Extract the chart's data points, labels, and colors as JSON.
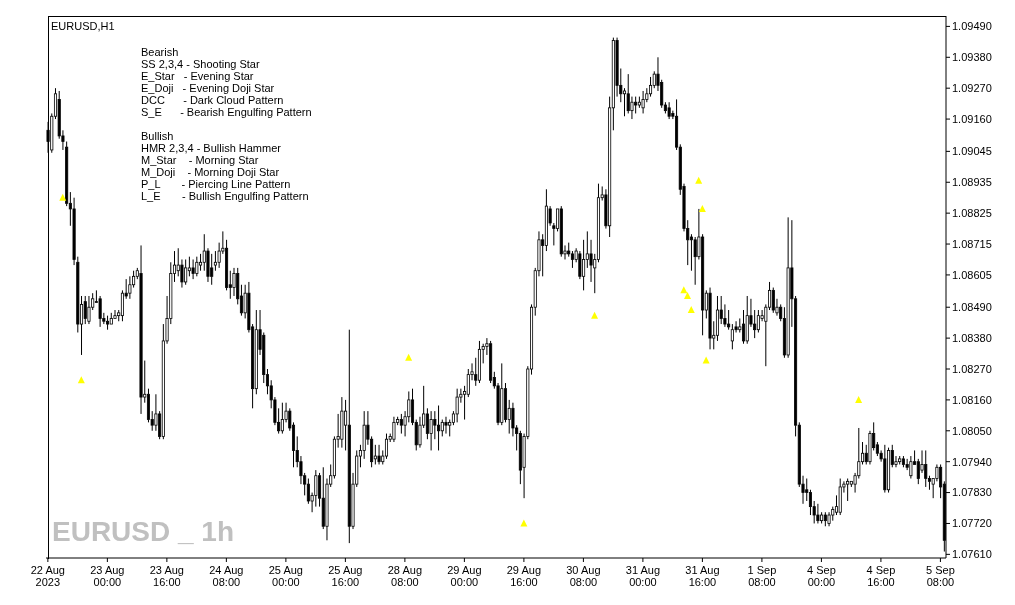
{
  "chart_data": {
    "type": "candlestick",
    "title": "EURUSD,H1",
    "annotations": [
      "Bearish",
      "SS 2,3,4 - Shooting Star",
      "E_Star   - Evening Star",
      "E_Doji   - Evening Doji Star",
      "DCC      - Dark Cloud Pattern",
      "S_E      - Bearish Engulfing Pattern",
      "Bullish",
      "HMR 2,3,4 - Bullish Hammer",
      "M_Star    - Morning Star",
      "M_Doji    - Morning Doji Star",
      "P_L       - Piercing Line Pattern",
      "L_E       - Bullish Engulfing Pattern",
      "EURUSD _ 1h"
    ],
    "categories": [
      "22 Aug 2023",
      null,
      null,
      null,
      null,
      null,
      null,
      null,
      null,
      null,
      null,
      null,
      null,
      null,
      null,
      null,
      "23 Aug 00:00",
      null,
      null,
      null,
      null,
      null,
      null,
      null,
      null,
      null,
      null,
      null,
      null,
      null,
      null,
      null,
      "23 Aug 16:00",
      null,
      null,
      null,
      null,
      null,
      null,
      null,
      null,
      null,
      null,
      null,
      null,
      null,
      null,
      null,
      "24 Aug 08:00",
      null,
      null,
      null,
      null,
      null,
      null,
      null,
      null,
      null,
      null,
      null,
      null,
      null,
      null,
      null,
      "25 Aug 00:00",
      null,
      null,
      null,
      null,
      null,
      null,
      null,
      null,
      null,
      null,
      null,
      null,
      null,
      null,
      null,
      "25 Aug 16:00",
      null,
      null,
      null,
      null,
      null,
      null,
      null,
      null,
      null,
      null,
      null,
      null,
      null,
      null,
      null,
      "28 Aug 08:00",
      null,
      null,
      null,
      null,
      null,
      null,
      null,
      null,
      null,
      null,
      null,
      null,
      null,
      null,
      null,
      "29 Aug 00:00",
      null,
      null,
      null,
      null,
      null,
      null,
      null,
      null,
      null,
      null,
      null,
      null,
      null,
      null,
      null,
      "29 Aug 16:00",
      null,
      null,
      null,
      null,
      null,
      null,
      null,
      null,
      null,
      null,
      null,
      null,
      null,
      null,
      null,
      "30 Aug 08:00",
      null,
      null,
      null,
      null,
      null,
      null,
      null,
      null,
      null,
      null,
      null,
      null,
      null,
      null,
      null,
      "31 Aug 00:00",
      null,
      null,
      null,
      null,
      null,
      null,
      null,
      null,
      null,
      null,
      null,
      null,
      null,
      null,
      null,
      "31 Aug 16:00",
      null,
      null,
      null,
      null,
      null,
      null,
      null,
      null,
      null,
      null,
      null,
      null,
      null,
      null,
      null,
      "1 Sep 08:00",
      null,
      null,
      null,
      null,
      null,
      null,
      null,
      null,
      null,
      null,
      null,
      null,
      null,
      null,
      null,
      "4 Sep 00:00",
      null,
      null,
      null,
      null,
      null,
      null,
      null,
      null,
      null,
      null,
      null,
      null,
      null,
      null,
      null,
      "4 Sep 16:00",
      null,
      null,
      null,
      null,
      null,
      null,
      null,
      null,
      null,
      null,
      null,
      null,
      null,
      null,
      null,
      "5 Sep 08:00",
      null
    ],
    "ohlc": [
      [
        1.0912,
        1.0915,
        1.0904,
        1.0908
      ],
      [
        1.0905,
        1.0918,
        1.0904,
        1.0917
      ],
      [
        1.0917,
        1.0927,
        1.0916,
        1.0925
      ],
      [
        1.0923,
        1.0926,
        1.0909,
        1.091
      ],
      [
        1.091,
        1.0912,
        1.0905,
        1.0908
      ],
      [
        1.0906,
        1.0908,
        1.0885,
        1.0886
      ],
      [
        1.0886,
        1.089,
        1.0878,
        1.0884
      ],
      [
        1.0884,
        1.0888,
        1.0864,
        1.0866
      ],
      [
        1.0865,
        1.0867,
        1.084,
        1.0843
      ],
      [
        1.0843,
        1.0853,
        1.0832,
        1.085
      ],
      [
        1.0851,
        1.0853,
        1.0843,
        1.0845
      ],
      [
        1.0844,
        1.0853,
        1.0843,
        1.0849
      ],
      [
        1.0849,
        1.0854,
        1.0848,
        1.0852
      ],
      [
        1.0851,
        1.0855,
        1.0851,
        1.0851
      ],
      [
        1.0852,
        1.0853,
        1.0842,
        1.0845
      ],
      [
        1.0845,
        1.0847,
        1.0843,
        1.0844
      ],
      [
        1.0844,
        1.0846,
        1.0841,
        1.0843
      ],
      [
        1.0843,
        1.0847,
        1.0843,
        1.0845
      ],
      [
        1.0845,
        1.0848,
        1.0845,
        1.0846
      ],
      [
        1.0846,
        1.0848,
        1.0844,
        1.0847
      ],
      [
        1.0846,
        1.0855,
        1.0844,
        1.0854
      ],
      [
        1.0854,
        1.0859,
        1.0852,
        1.0853
      ],
      [
        1.0854,
        1.086,
        1.0852,
        1.0857
      ],
      [
        1.0857,
        1.0862,
        1.0856,
        1.086
      ],
      [
        1.086,
        1.0863,
        1.0859,
        1.0862
      ],
      [
        1.0861,
        1.0871,
        1.0811,
        1.0817
      ],
      [
        1.0817,
        1.083,
        1.0815,
        1.0818
      ],
      [
        1.0818,
        1.082,
        1.0808,
        1.0809
      ],
      [
        1.0809,
        1.0812,
        1.0805,
        1.0807
      ],
      [
        1.0807,
        1.0818,
        1.0805,
        1.0811
      ],
      [
        1.0811,
        1.0812,
        1.0802,
        1.0803
      ],
      [
        1.0803,
        1.0843,
        1.0802,
        1.0837
      ],
      [
        1.0837,
        1.0853,
        1.0836,
        1.0845
      ],
      [
        1.0845,
        1.0865,
        1.0843,
        1.0861
      ],
      [
        1.0861,
        1.0869,
        1.0858,
        1.0864
      ],
      [
        1.0862,
        1.087,
        1.086,
        1.0864
      ],
      [
        1.0864,
        1.0866,
        1.0856,
        1.0858
      ],
      [
        1.0858,
        1.0866,
        1.0857,
        1.0863
      ],
      [
        1.0862,
        1.0867,
        1.086,
        1.0863
      ],
      [
        1.0863,
        1.0866,
        1.0859,
        1.0861
      ],
      [
        1.0861,
        1.0867,
        1.086,
        1.0865
      ],
      [
        1.0864,
        1.0868,
        1.0862,
        1.0865
      ],
      [
        1.0865,
        1.0875,
        1.0862,
        1.0869
      ],
      [
        1.0869,
        1.087,
        1.0858,
        1.086
      ],
      [
        1.0863,
        1.0868,
        1.0857,
        1.086
      ],
      [
        1.0864,
        1.0869,
        1.0862,
        1.0865
      ],
      [
        1.0865,
        1.0872,
        1.0863,
        1.0869
      ],
      [
        1.0869,
        1.0876,
        1.0868,
        1.087
      ],
      [
        1.087,
        1.0873,
        1.0855,
        1.0856
      ],
      [
        1.0857,
        1.0862,
        1.0852,
        1.0856
      ],
      [
        1.0856,
        1.0863,
        1.0853,
        1.0861
      ],
      [
        1.0861,
        1.0863,
        1.085,
        1.0852
      ],
      [
        1.0853,
        1.0857,
        1.0846,
        1.0847
      ],
      [
        1.0847,
        1.0857,
        1.0845,
        1.0854
      ],
      [
        1.0854,
        1.0858,
        1.084,
        1.0841
      ],
      [
        1.0842,
        1.0843,
        1.0813,
        1.082
      ],
      [
        1.082,
        1.0848,
        1.0818,
        1.0841
      ],
      [
        1.0841,
        1.0848,
        1.0832,
        1.0834
      ],
      [
        1.0839,
        1.084,
        1.0822,
        1.0825
      ],
      [
        1.0825,
        1.0827,
        1.0818,
        1.0821
      ],
      [
        1.0821,
        1.0823,
        1.0813,
        1.0816
      ],
      [
        1.0816,
        1.0817,
        1.0807,
        1.0808
      ],
      [
        1.0808,
        1.0813,
        1.0804,
        1.0805
      ],
      [
        1.0805,
        1.0815,
        1.0804,
        1.0809
      ],
      [
        1.0809,
        1.0815,
        1.0808,
        1.0812
      ],
      [
        1.0812,
        1.0813,
        1.0805,
        1.0806
      ],
      [
        1.0807,
        1.0808,
        1.0792,
        1.0798
      ],
      [
        1.0798,
        1.0803,
        1.0792,
        1.0794
      ],
      [
        1.0794,
        1.0796,
        1.0786,
        1.0789
      ],
      [
        1.0789,
        1.079,
        1.0782,
        1.0786
      ],
      [
        1.0786,
        1.0788,
        1.0779,
        1.078
      ],
      [
        1.078,
        1.0783,
        1.0776,
        1.0782
      ],
      [
        1.0782,
        1.0791,
        1.0778,
        1.0789
      ],
      [
        1.0789,
        1.079,
        1.0778,
        1.0781
      ],
      [
        1.0781,
        1.0792,
        1.077,
        1.0771
      ],
      [
        1.0771,
        1.0788,
        1.0766,
        1.0786
      ],
      [
        1.0786,
        1.0793,
        1.0785,
        1.0789
      ],
      [
        1.0789,
        1.0803,
        1.0788,
        1.0802
      ],
      [
        1.0802,
        1.0811,
        1.0799,
        1.0803
      ],
      [
        1.0802,
        1.0817,
        1.0799,
        1.0812
      ],
      [
        1.0807,
        1.0816,
        1.0798,
        1.0812
      ],
      [
        1.0807,
        1.0841,
        1.0765,
        1.0771
      ],
      [
        1.0771,
        1.079,
        1.077,
        1.0786
      ],
      [
        1.0786,
        1.0798,
        1.0785,
        1.0796
      ],
      [
        1.0796,
        1.08,
        1.0792,
        1.0798
      ],
      [
        1.0798,
        1.0812,
        1.0795,
        1.0807
      ],
      [
        1.0807,
        1.0812,
        1.08,
        1.0802
      ],
      [
        1.0802,
        1.0803,
        1.0792,
        1.0794
      ],
      [
        1.0795,
        1.08,
        1.0793,
        1.0796
      ],
      [
        1.0796,
        1.08,
        1.0793,
        1.0794
      ],
      [
        1.0794,
        1.0798,
        1.0793,
        1.0796
      ],
      [
        1.0796,
        1.0804,
        1.0795,
        1.0802
      ],
      [
        1.0802,
        1.0804,
        1.0801,
        1.0803
      ],
      [
        1.0802,
        1.081,
        1.0801,
        1.0808
      ],
      [
        1.0808,
        1.081,
        1.0807,
        1.0809
      ],
      [
        1.0809,
        1.0811,
        1.0804,
        1.0807
      ],
      [
        1.0807,
        1.0812,
        1.0803,
        1.081
      ],
      [
        1.081,
        1.0819,
        1.0808,
        1.0816
      ],
      [
        1.0816,
        1.082,
        1.0807,
        1.0808
      ],
      [
        1.0808,
        1.0809,
        1.0798,
        1.08
      ],
      [
        1.08,
        1.081,
        1.0799,
        1.0807
      ],
      [
        1.0807,
        1.0821,
        1.0806,
        1.0811
      ],
      [
        1.0811,
        1.0813,
        1.0802,
        1.0804
      ],
      [
        1.0804,
        1.0812,
        1.0798,
        1.0809
      ],
      [
        1.0809,
        1.0812,
        1.0802,
        1.0807
      ],
      [
        1.0807,
        1.0814,
        1.0798,
        1.0805
      ],
      [
        1.0805,
        1.0809,
        1.0803,
        1.0808
      ],
      [
        1.0808,
        1.081,
        1.0804,
        1.0807
      ],
      [
        1.0807,
        1.0809,
        1.0803,
        1.0808
      ],
      [
        1.0808,
        1.0812,
        1.0807,
        1.0811
      ],
      [
        1.0811,
        1.082,
        1.0808,
        1.0817
      ],
      [
        1.0817,
        1.082,
        1.0815,
        1.0818
      ],
      [
        1.0818,
        1.0821,
        1.0809,
        1.0819
      ],
      [
        1.0818,
        1.0827,
        1.0817,
        1.0825
      ],
      [
        1.0825,
        1.0829,
        1.0823,
        1.0826
      ],
      [
        1.0825,
        1.0831,
        1.0821,
        1.0823
      ],
      [
        1.0823,
        1.0837,
        1.0822,
        1.0834
      ],
      [
        1.0834,
        1.0836,
        1.0829,
        1.0835
      ],
      [
        1.0835,
        1.0838,
        1.0832,
        1.0836
      ],
      [
        1.0836,
        1.0837,
        1.0822,
        1.0823
      ],
      [
        1.0824,
        1.0826,
        1.082,
        1.0821
      ],
      [
        1.0821,
        1.0822,
        1.0807,
        1.0808
      ],
      [
        1.0808,
        1.0829,
        1.0807,
        1.082
      ],
      [
        1.082,
        1.0822,
        1.0808,
        1.0809
      ],
      [
        1.0809,
        1.0816,
        1.0804,
        1.0813
      ],
      [
        1.0813,
        1.0815,
        1.0803,
        1.0806
      ],
      [
        1.0806,
        1.0807,
        1.0798,
        1.0804
      ],
      [
        1.0804,
        1.0805,
        1.0786,
        1.0791
      ],
      [
        1.0792,
        1.0804,
        1.0781,
        1.0803
      ],
      [
        1.0803,
        1.0828,
        1.0802,
        1.0827
      ],
      [
        1.0827,
        1.085,
        1.0825,
        1.0849
      ],
      [
        1.0849,
        1.0863,
        1.0846,
        1.0862
      ],
      [
        1.0862,
        1.0876,
        1.086,
        1.0873
      ],
      [
        1.0873,
        1.0875,
        1.086,
        1.0871
      ],
      [
        1.0871,
        1.0891,
        1.0869,
        1.0885
      ],
      [
        1.0884,
        1.0885,
        1.0878,
        1.0879
      ],
      [
        1.0878,
        1.0879,
        1.0871,
        1.0877
      ],
      [
        1.0877,
        1.0884,
        1.0876,
        1.0884
      ],
      [
        1.0884,
        1.0885,
        1.0867,
        1.0868
      ],
      [
        1.0868,
        1.0871,
        1.0866,
        1.0869
      ],
      [
        1.0869,
        1.0872,
        1.0867,
        1.0868
      ],
      [
        1.0868,
        1.0869,
        1.0863,
        1.0866
      ],
      [
        1.0866,
        1.087,
        1.0865,
        1.0869
      ],
      [
        1.0868,
        1.0869,
        1.0859,
        1.086
      ],
      [
        1.086,
        1.0873,
        1.0855,
        1.0866
      ],
      [
        1.0866,
        1.0876,
        1.0863,
        1.0868
      ],
      [
        1.0868,
        1.0873,
        1.0858,
        1.0864
      ],
      [
        1.0863,
        1.0868,
        1.0854,
        1.0866
      ],
      [
        1.0866,
        1.0893,
        1.0865,
        1.0888
      ],
      [
        1.0888,
        1.0892,
        1.0887,
        1.0889
      ],
      [
        1.0889,
        1.0891,
        1.0877,
        1.0878
      ],
      [
        1.0878,
        1.0924,
        1.0874,
        1.092
      ],
      [
        1.092,
        1.0945,
        1.0912,
        1.0944
      ],
      [
        1.0944,
        1.0945,
        1.0924,
        1.0928
      ],
      [
        1.0928,
        1.0934,
        1.0922,
        1.0925
      ],
      [
        1.0925,
        1.0927,
        1.0917,
        1.0926
      ],
      [
        1.0925,
        1.0932,
        1.0918,
        1.0919
      ],
      [
        1.0919,
        1.0924,
        1.0916,
        1.0922
      ],
      [
        1.0922,
        1.0924,
        1.0918,
        1.0921
      ],
      [
        1.0921,
        1.0924,
        1.092,
        1.0922
      ],
      [
        1.092,
        1.0926,
        1.0918,
        1.0923
      ],
      [
        1.0923,
        1.0927,
        1.0922,
        1.0925
      ],
      [
        1.0925,
        1.0931,
        1.0924,
        1.0928
      ],
      [
        1.0928,
        1.0933,
        1.0927,
        1.0932
      ],
      [
        1.0932,
        1.0938,
        1.0926,
        1.0928
      ],
      [
        1.0929,
        1.093,
        1.092,
        1.0921
      ],
      [
        1.0921,
        1.0922,
        1.0918,
        1.0919
      ],
      [
        1.092,
        1.0922,
        1.0916,
        1.0917
      ],
      [
        1.0918,
        1.0919,
        1.0916,
        1.0917
      ],
      [
        1.0917,
        1.0923,
        1.0905,
        1.0906
      ],
      [
        1.0906,
        1.0907,
        1.0889,
        1.0891
      ],
      [
        1.0892,
        1.0893,
        1.0876,
        1.0877
      ],
      [
        1.0877,
        1.088,
        1.0864,
        1.0873
      ],
      [
        1.0874,
        1.0875,
        1.0862,
        1.0873
      ],
      [
        1.0873,
        1.0874,
        1.0857,
        1.0867
      ],
      [
        1.0867,
        1.0884,
        1.0866,
        1.0874
      ],
      [
        1.0874,
        1.0875,
        1.0839,
        1.0848
      ],
      [
        1.0848,
        1.0855,
        1.0845,
        1.0854
      ],
      [
        1.0854,
        1.0856,
        1.0834,
        1.0838
      ],
      [
        1.0838,
        1.0844,
        1.0834,
        1.0839
      ],
      [
        1.0839,
        1.0853,
        1.0837,
        1.0848
      ],
      [
        1.0848,
        1.0853,
        1.0843,
        1.0845
      ],
      [
        1.0845,
        1.085,
        1.0842,
        1.0843
      ],
      [
        1.0843,
        1.0848,
        1.0841,
        1.0842
      ],
      [
        1.0837,
        1.0843,
        1.0834,
        1.0841
      ],
      [
        1.0842,
        1.0844,
        1.084,
        1.0841
      ],
      [
        1.0841,
        1.0845,
        1.084,
        1.0842
      ],
      [
        1.0843,
        1.0848,
        1.0836,
        1.0837
      ],
      [
        1.0837,
        1.0853,
        1.0836,
        1.0846
      ],
      [
        1.0846,
        1.0852,
        1.0842,
        1.0843
      ],
      [
        1.0843,
        1.0848,
        1.0838,
        1.0841
      ],
      [
        1.0841,
        1.0848,
        1.084,
        1.0846
      ],
      [
        1.0845,
        1.0848,
        1.0844,
        1.0846
      ],
      [
        1.0844,
        1.085,
        1.0828,
        1.0849
      ],
      [
        1.0849,
        1.0858,
        1.0848,
        1.0855
      ],
      [
        1.0855,
        1.0856,
        1.0847,
        1.0848
      ],
      [
        1.0847,
        1.0852,
        1.0846,
        1.0849
      ],
      [
        1.0849,
        1.085,
        1.0844,
        1.0845
      ],
      [
        1.0845,
        1.0849,
        1.0831,
        1.0832
      ],
      [
        1.0832,
        1.0881,
        1.0831,
        1.0863
      ],
      [
        1.0863,
        1.088,
        1.0842,
        1.0852
      ],
      [
        1.0852,
        1.0853,
        1.0803,
        1.0807
      ],
      [
        1.0807,
        1.0808,
        1.0785,
        1.0786
      ],
      [
        1.0786,
        1.0789,
        1.0779,
        1.0783
      ],
      [
        1.0784,
        1.0788,
        1.078,
        1.0783
      ],
      [
        1.0783,
        1.0784,
        1.0775,
        1.0778
      ],
      [
        1.0778,
        1.078,
        1.0772,
        1.0775
      ],
      [
        1.0775,
        1.0779,
        1.0772,
        1.0773
      ],
      [
        1.0773,
        1.0776,
        1.0772,
        1.0775
      ],
      [
        1.0775,
        1.0776,
        1.0771,
        1.0773
      ],
      [
        1.0772,
        1.0776,
        1.0771,
        1.0775
      ],
      [
        1.0775,
        1.0778,
        1.0773,
        1.0777
      ],
      [
        1.0776,
        1.0782,
        1.0775,
        1.0778
      ],
      [
        1.0776,
        1.0788,
        1.0775,
        1.0785
      ],
      [
        1.0785,
        1.0787,
        1.0783,
        1.0786
      ],
      [
        1.0786,
        1.0788,
        1.078,
        1.0787
      ],
      [
        1.0786,
        1.0787,
        1.0785,
        1.0787
      ],
      [
        1.0786,
        1.079,
        1.0783,
        1.0789
      ],
      [
        1.0789,
        1.0806,
        1.0788,
        1.0794
      ],
      [
        1.0794,
        1.0801,
        1.0793,
        1.0797
      ],
      [
        1.0797,
        1.08,
        1.0793,
        1.0794
      ],
      [
        1.0794,
        1.0805,
        1.0793,
        1.0804
      ],
      [
        1.0804,
        1.0808,
        1.0798,
        1.0799
      ],
      [
        1.08,
        1.0801,
        1.0796,
        1.0797
      ],
      [
        1.0797,
        1.0798,
        1.0794,
        1.0795
      ],
      [
        1.0795,
        1.08,
        1.0783,
        1.0784
      ],
      [
        1.0784,
        1.0799,
        1.0783,
        1.0798
      ],
      [
        1.0798,
        1.08,
        1.0792,
        1.0793
      ],
      [
        1.0793,
        1.0796,
        1.0792,
        1.0794
      ],
      [
        1.0794,
        1.0796,
        1.0793,
        1.0795
      ],
      [
        1.0795,
        1.0796,
        1.0792,
        1.0793
      ],
      [
        1.0793,
        1.0795,
        1.0791,
        1.0792
      ],
      [
        1.0789,
        1.0796,
        1.0788,
        1.0794
      ],
      [
        1.0794,
        1.0798,
        1.0793,
        1.0793
      ],
      [
        1.0794,
        1.0795,
        1.0786,
        1.0788
      ],
      [
        1.0791,
        1.0798,
        1.079,
        1.0793
      ],
      [
        1.0793,
        1.0798,
        1.0785,
        1.0788
      ],
      [
        1.0788,
        1.0789,
        1.0784,
        1.0787
      ],
      [
        1.0786,
        1.0788,
        1.0781,
        1.0788
      ],
      [
        1.0788,
        1.0793,
        1.0787,
        1.0792
      ],
      [
        1.0792,
        1.0793,
        1.0781,
        1.0785
      ],
      [
        1.0786,
        1.0787,
        1.0762,
        1.0766
      ]
    ],
    "series": [
      {
        "type": "scatter",
        "color": "#ffff00",
        "marker": "triangle",
        "values": [
          null,
          null,
          null,
          null,
          1.0888,
          null,
          null,
          null,
          null,
          1.0823,
          null,
          null,
          null,
          null,
          null,
          null,
          null,
          null,
          null,
          null,
          null,
          null,
          null,
          null,
          null,
          null,
          null,
          null,
          null,
          null,
          null,
          null,
          null,
          null,
          null,
          null,
          null,
          null,
          null,
          null,
          null,
          null,
          null,
          null,
          null,
          null,
          null,
          null,
          null,
          null,
          null,
          null,
          null,
          null,
          null,
          null,
          null,
          null,
          null,
          null,
          null,
          null,
          null,
          null,
          null,
          null,
          null,
          null,
          null,
          null,
          null,
          null,
          null,
          null,
          null,
          null,
          null,
          null,
          null,
          null,
          null,
          null,
          null,
          null,
          null,
          null,
          null,
          null,
          null,
          null,
          null,
          null,
          null,
          null,
          null,
          null,
          null,
          1.0831,
          null,
          null,
          null,
          null,
          null,
          null,
          null,
          null,
          null,
          null,
          null,
          null,
          null,
          null,
          null,
          null,
          null,
          null,
          null,
          null,
          null,
          null,
          null,
          null,
          null,
          null,
          null,
          null,
          null,
          null,
          1.0772,
          null,
          null,
          null,
          null,
          null,
          null,
          null,
          null,
          null,
          null,
          null,
          null,
          null,
          null,
          null,
          null,
          null,
          null,
          1.0846,
          null,
          null,
          null,
          null,
          null,
          null,
          null,
          null,
          null,
          null,
          null,
          null,
          null,
          null,
          null,
          null,
          null,
          null,
          null,
          null,
          null,
          null,
          null,
          1.0855,
          1.0853,
          1.0848,
          null,
          1.0894,
          1.0884,
          1.083,
          null,
          null,
          null,
          null,
          null,
          null,
          null,
          null,
          null,
          null,
          null,
          null,
          null,
          null,
          null,
          null,
          null,
          null,
          null,
          null,
          null,
          null,
          null,
          null,
          null,
          null,
          null,
          null,
          null,
          null,
          null,
          null,
          null,
          null,
          null,
          null,
          null,
          null,
          null,
          null,
          1.0816,
          null,
          null,
          null,
          null,
          null,
          null,
          null,
          null,
          null,
          null,
          null,
          null,
          null,
          null,
          null,
          null,
          null,
          null,
          null,
          null,
          null,
          null,
          null
        ]
      }
    ],
    "ylim": [
      1.07597,
      1.09527
    ],
    "yticks": [
      {
        "value": 1.0949,
        "label": "1.09490"
      },
      {
        "value": 1.0938,
        "label": "1.09380"
      },
      {
        "value": 1.0927,
        "label": "1.09270"
      },
      {
        "value": 1.0916,
        "label": "1.09160"
      },
      {
        "value": 1.09045,
        "label": "1.09045"
      },
      {
        "value": 1.08935,
        "label": "1.08935"
      },
      {
        "value": 1.08825,
        "label": "1.08825"
      },
      {
        "value": 1.08715,
        "label": "1.08715"
      },
      {
        "value": 1.08605,
        "label": "1.08605"
      },
      {
        "value": 1.0849,
        "label": "1.08490"
      },
      {
        "value": 1.0838,
        "label": "1.08380"
      },
      {
        "value": 1.0827,
        "label": "1.08270"
      },
      {
        "value": 1.0816,
        "label": "1.08160"
      },
      {
        "value": 1.0805,
        "label": "1.08050"
      },
      {
        "value": 1.0794,
        "label": "1.07940"
      },
      {
        "value": 1.0783,
        "label": "1.07830"
      },
      {
        "value": 1.0772,
        "label": "1.07720"
      },
      {
        "value": 1.0761,
        "label": "1.07610"
      }
    ]
  }
}
